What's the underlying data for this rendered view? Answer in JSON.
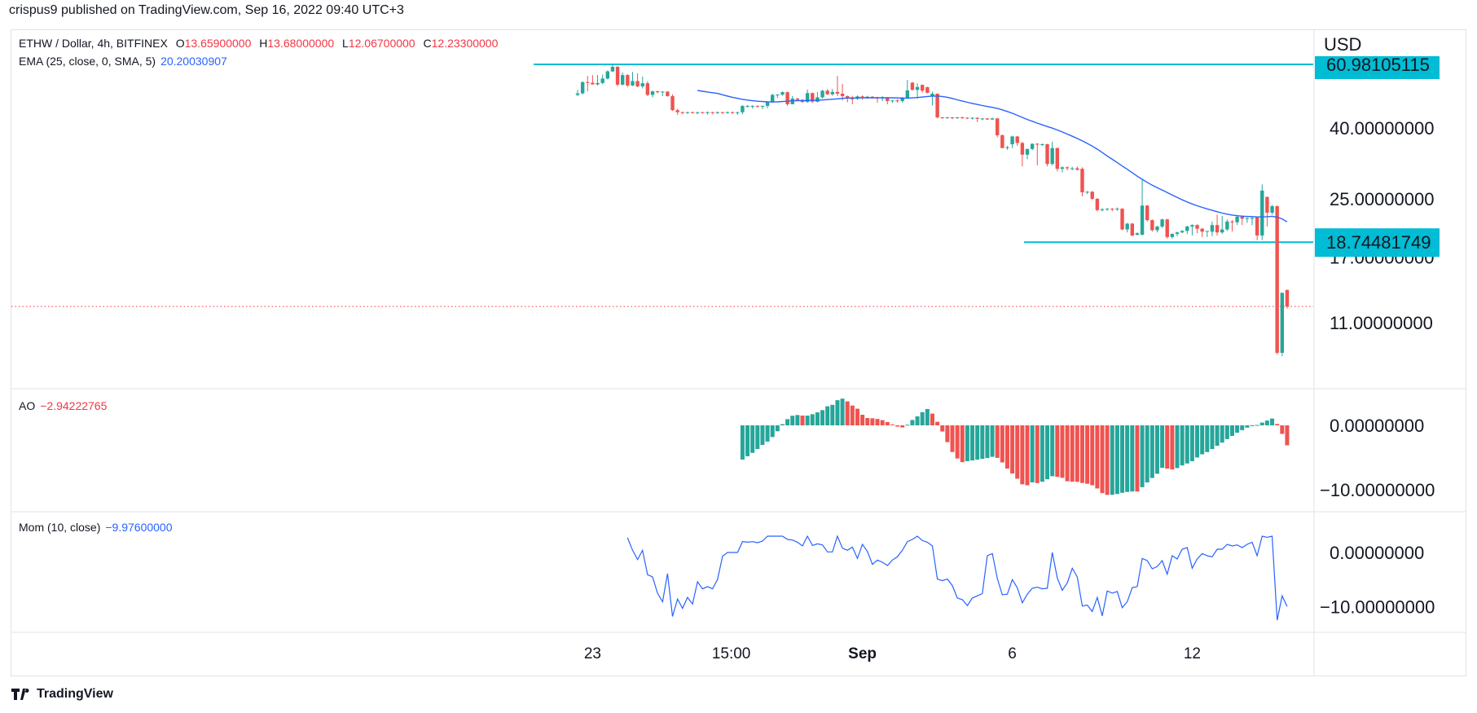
{
  "header": {
    "published": "crispus9 published on TradingView.com, Sep 16, 2022 09:40 UTC+3"
  },
  "legend": {
    "symbol": "ETHW / Dollar, 4h, BITFINEX",
    "o_label": "O",
    "o_value": "13.65900000",
    "h_label": "H",
    "h_value": "13.68000000",
    "l_label": "L",
    "l_value": "12.06700000",
    "c_label": "C",
    "c_value": "12.23300000",
    "ema_label": "EMA (25, close, 0, SMA, 5)",
    "ema_value": "20.20030907",
    "ao_label": "AO",
    "ao_value": "−2.94222765",
    "mom_label": "Mom (10, close)",
    "mom_value": "−9.97600000"
  },
  "footer": {
    "brand": "TradingView"
  },
  "colors": {
    "up": "#26a69a",
    "down": "#ef5350",
    "ema": "#2962ff",
    "level_line": "#00bcd4",
    "mom": "#2962ff",
    "last_price": "#f23645"
  },
  "chart_data": {
    "type": "candlestick",
    "interval": "4h",
    "x_start": "2022-08-22T12:00",
    "y_scale": "log",
    "currency": "USD",
    "price_ticks": [
      {
        "value": 40,
        "label": "40.00000000"
      },
      {
        "value": 25,
        "label": "25.00000000"
      },
      {
        "value": 17,
        "label": "17.00000000"
      },
      {
        "value": 11,
        "label": "11.00000000"
      }
    ],
    "horizontal_levels": [
      {
        "value": 60.98105115,
        "label": "60.98105115"
      },
      {
        "value": 18.74481749,
        "label": "18.74481749"
      }
    ],
    "last_close": 12.233,
    "time_ticks": [
      {
        "date": "2022-08-23T00:00",
        "label": "23"
      },
      {
        "date": "2022-08-27T15:00",
        "label": "15:00"
      },
      {
        "date": "2022-09-01T00:00",
        "label": "Sep"
      },
      {
        "date": "2022-09-06T00:00",
        "label": "6"
      },
      {
        "date": "2022-09-12T00:00",
        "label": "12"
      }
    ],
    "ao_ticks": [
      {
        "value": 0,
        "label": "0.00000000"
      },
      {
        "value": -10,
        "label": "−10.00000000"
      }
    ],
    "mom_ticks": [
      {
        "value": 0,
        "label": "0.00000000"
      },
      {
        "value": -10,
        "label": "−10.00000000"
      }
    ],
    "indicators": {
      "ema": {
        "length": 25,
        "smoothing": "SMA",
        "smoothing_length": 5
      },
      "ao": {},
      "mom": {
        "length": 10,
        "source": "close"
      }
    },
    "ohlc": [
      [
        49.8,
        51.5,
        49.4,
        50.3
      ],
      [
        50.3,
        54.5,
        50,
        54.2
      ],
      [
        54.2,
        56.5,
        51,
        54
      ],
      [
        54,
        56.8,
        53.3,
        53.4
      ],
      [
        53.4,
        56.8,
        53,
        53.9
      ],
      [
        53.9,
        57,
        53.5,
        55.5
      ],
      [
        55.5,
        58.6,
        55.2,
        58.2
      ],
      [
        58.2,
        61,
        58,
        60
      ],
      [
        60,
        60.3,
        52.8,
        53.3
      ],
      [
        53.3,
        57.8,
        53,
        56.8
      ],
      [
        56.8,
        57.2,
        52.5,
        53
      ],
      [
        53,
        58,
        52.8,
        54.6
      ],
      [
        54.6,
        57.5,
        52.4,
        52.7
      ],
      [
        52.7,
        56.2,
        52,
        53.8
      ],
      [
        53.8,
        54.5,
        49.4,
        49.8
      ],
      [
        49.8,
        51.2,
        49,
        51
      ],
      [
        51,
        51.2,
        50.3,
        50.7
      ],
      [
        50.7,
        51,
        49.4,
        50.9
      ],
      [
        50.9,
        51,
        49.2,
        49.4
      ],
      [
        49.4,
        50,
        44.8,
        45
      ],
      [
        45,
        45.4,
        43.6,
        44.4
      ],
      [
        44.4,
        44.6,
        43.8,
        44.3
      ],
      [
        44.3,
        44.5,
        43.9,
        44.4
      ],
      [
        44.4,
        44.6,
        44,
        44.3
      ],
      [
        44.3,
        44.5,
        43.8,
        44.4
      ],
      [
        44.4,
        44.5,
        44,
        44.3
      ],
      [
        44.3,
        44.6,
        43.7,
        44.4
      ],
      [
        44.4,
        44.5,
        43.8,
        44.2
      ],
      [
        44.2,
        44.6,
        43.9,
        44.4
      ],
      [
        44.4,
        44.5,
        43.9,
        44.3
      ],
      [
        44.3,
        44.6,
        44,
        44.4
      ],
      [
        44.4,
        44.6,
        43.9,
        44.3
      ],
      [
        44.3,
        44.5,
        43.6,
        44.4
      ],
      [
        44.4,
        46.5,
        43.8,
        46.3
      ],
      [
        46.3,
        46.5,
        45.8,
        46.3
      ],
      [
        46.3,
        46.5,
        45.5,
        46.3
      ],
      [
        46.3,
        46.4,
        45.8,
        46.2
      ],
      [
        46.2,
        46.4,
        45.3,
        46.3
      ],
      [
        46.3,
        47.5,
        45.6,
        47.4
      ],
      [
        47.4,
        50.2,
        47.2,
        49.8
      ],
      [
        49.8,
        50,
        48.8,
        49.9
      ],
      [
        49.9,
        51,
        49.5,
        50.7
      ],
      [
        50.7,
        50.9,
        46.3,
        46.8
      ],
      [
        46.8,
        49.4,
        46.8,
        48.6
      ],
      [
        48.6,
        48.8,
        47.8,
        48.2
      ],
      [
        48.2,
        48.4,
        47.3,
        47.5
      ],
      [
        47.5,
        51.6,
        47.3,
        50.4
      ],
      [
        50.4,
        50.6,
        47.2,
        47.6
      ],
      [
        47.6,
        50.8,
        47.4,
        49
      ],
      [
        49,
        51.5,
        48.6,
        51.2
      ],
      [
        51.2,
        51.8,
        49.8,
        50
      ],
      [
        50,
        51.8,
        49.5,
        50.8
      ],
      [
        50.8,
        56.5,
        49.4,
        50.2
      ],
      [
        50.2,
        53.6,
        48,
        49.4
      ],
      [
        49.4,
        49.6,
        47.4,
        48.6
      ],
      [
        48.6,
        49.5,
        46.8,
        48.5
      ],
      [
        48.5,
        49.6,
        48.2,
        49.3
      ],
      [
        49.3,
        49.6,
        48.2,
        49.1
      ],
      [
        49.1,
        49.5,
        48.5,
        49.2
      ],
      [
        49.2,
        49.4,
        48.6,
        49
      ],
      [
        49,
        49.2,
        47.3,
        48.6
      ],
      [
        48.6,
        49.4,
        47.8,
        49
      ],
      [
        49,
        49.1,
        46.8,
        47.8
      ],
      [
        47.8,
        48.1,
        47.2,
        48
      ],
      [
        48,
        48.4,
        47.3,
        47.8
      ],
      [
        47.8,
        49.1,
        47.3,
        48.9
      ],
      [
        48.9,
        55,
        48.7,
        51.3
      ],
      [
        54,
        54.3,
        51.2,
        51.5
      ],
      [
        51.5,
        53.8,
        48.6,
        52.5
      ],
      [
        53.2,
        53.4,
        50.6,
        51.2
      ],
      [
        52.4,
        52.6,
        50.3,
        50.5
      ],
      [
        49.5,
        50.9,
        46.4,
        50.2
      ],
      [
        50.2,
        50.3,
        42.6,
        42.9
      ],
      [
        42.9,
        43,
        42.5,
        42.8
      ],
      [
        42.8,
        43,
        42.5,
        42.9
      ],
      [
        42.9,
        43,
        42.4,
        42.8
      ],
      [
        42.8,
        43,
        42.5,
        42.9
      ],
      [
        42.9,
        43.1,
        42.5,
        42.8
      ],
      [
        42.8,
        42.9,
        42.4,
        42.7
      ],
      [
        42.7,
        42.9,
        42.3,
        42.8
      ],
      [
        42.8,
        42.9,
        41.6,
        42.5
      ],
      [
        42.5,
        42.7,
        42.1,
        42.6
      ],
      [
        42.6,
        42.7,
        42.2,
        42.3
      ],
      [
        42.3,
        42.8,
        42.2,
        42.6
      ],
      [
        42.6,
        42.8,
        37.6,
        38.1
      ],
      [
        38.1,
        38.3,
        35,
        35
      ],
      [
        35,
        35.5,
        34.6,
        35.2
      ],
      [
        35.9,
        38,
        35,
        37.8
      ],
      [
        37.8,
        37.9,
        35.5,
        36.2
      ],
      [
        36.2,
        36.5,
        31,
        33.5
      ],
      [
        33.5,
        34.8,
        32.5,
        34.8
      ],
      [
        34.8,
        36.1,
        34.5,
        36
      ],
      [
        36,
        36.2,
        31.2,
        35.9
      ],
      [
        35.9,
        36.1,
        35.5,
        35.9
      ],
      [
        35.9,
        36,
        31,
        31.5
      ],
      [
        31.5,
        36.5,
        31.2,
        35
      ],
      [
        35,
        35.1,
        30,
        30.5
      ],
      [
        30.5,
        31,
        29.8,
        30.8
      ],
      [
        30.8,
        31,
        30.2,
        30.6
      ],
      [
        30.6,
        30.9,
        30.2,
        30.6
      ],
      [
        30.6,
        31,
        30.2,
        30.3
      ],
      [
        30.5,
        30.8,
        25.4,
        26.1
      ],
      [
        26.1,
        26.3,
        25.8,
        26.2
      ],
      [
        26.2,
        26.3,
        24.8,
        25
      ],
      [
        25,
        25.1,
        23,
        23.2
      ],
      [
        23.3,
        23.5,
        23,
        23.3
      ],
      [
        23.3,
        23.5,
        23.1,
        23.4
      ],
      [
        23.4,
        23.5,
        23,
        23.3
      ],
      [
        23.3,
        23.6,
        23.1,
        23.4
      ],
      [
        23.4,
        23.5,
        20.3,
        20.4
      ],
      [
        20.4,
        21.3,
        20,
        21.2
      ],
      [
        21.2,
        21.3,
        19.5,
        19.6
      ],
      [
        19.7,
        20,
        19.6,
        19.9
      ],
      [
        19.7,
        28.4,
        19.6,
        23.9
      ],
      [
        23.9,
        24,
        21.5,
        21.7
      ],
      [
        21.7,
        21.8,
        20.1,
        20.3
      ],
      [
        20.3,
        20.9,
        20,
        20.8
      ],
      [
        20.8,
        21.9,
        20.6,
        21.8
      ],
      [
        21.8,
        21.9,
        19.2,
        19.4
      ],
      [
        19.4,
        19.9,
        19.2,
        19.8
      ],
      [
        19.8,
        20.1,
        19.5,
        20
      ],
      [
        20,
        20.3,
        19.9,
        20.2
      ],
      [
        20.2,
        20.9,
        19.8,
        20.8
      ],
      [
        20.8,
        21.1,
        19.6,
        21
      ],
      [
        21,
        21.1,
        19.9,
        20.5
      ],
      [
        20.5,
        20.6,
        19.4,
        20.1
      ],
      [
        20.1,
        20.2,
        19.4,
        20.2
      ],
      [
        20.1,
        21.5,
        19.5,
        21
      ],
      [
        21,
        22.5,
        19.6,
        20
      ],
      [
        20,
        22.3,
        19.8,
        20.4
      ],
      [
        20.4,
        21.8,
        20.2,
        21.5
      ],
      [
        21.5,
        21.7,
        20.1,
        21.4
      ],
      [
        21.4,
        22.4,
        21,
        22.2
      ],
      [
        22.2,
        22.4,
        21,
        21.9
      ],
      [
        21.9,
        22.1,
        21.3,
        22
      ],
      [
        22,
        22.2,
        21,
        22
      ],
      [
        22.1,
        22.2,
        19,
        19.6
      ],
      [
        19.6,
        27.5,
        19,
        26.4
      ],
      [
        25.3,
        25.4,
        20.8,
        22.8
      ],
      [
        22.8,
        24,
        22.5,
        23.8
      ],
      [
        23.8,
        23.9,
        8.9,
        9.0
      ],
      [
        9.0,
        13.4,
        8.8,
        13.4
      ],
      [
        13.659,
        13.68,
        12.067,
        12.233
      ]
    ]
  }
}
